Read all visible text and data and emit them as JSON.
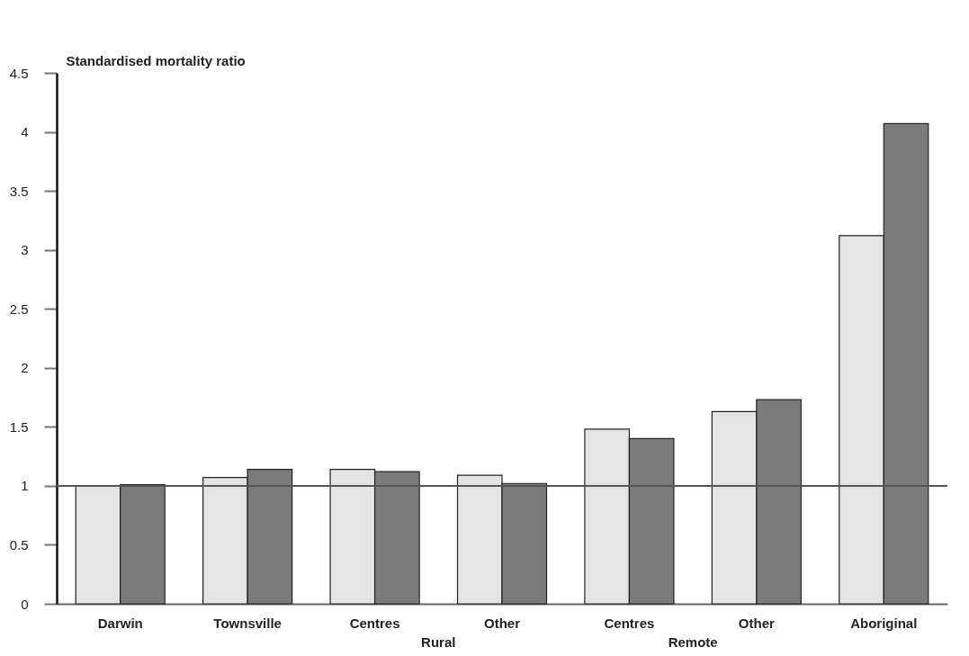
{
  "chart_data": {
    "type": "bar",
    "ylabel": "Standardised mortality ratio",
    "categories": [
      "Darwin",
      "Townsville",
      "Centres",
      "Other",
      "Centres",
      "Other",
      "Aboriginal"
    ],
    "series": [
      {
        "color": "#e4e4e4",
        "values": [
          1.0,
          1.07,
          1.14,
          1.09,
          1.48,
          1.63,
          3.12
        ]
      },
      {
        "color": "#7b7b7b",
        "values": [
          1.01,
          1.14,
          1.12,
          1.02,
          1.4,
          1.73,
          4.07
        ]
      }
    ],
    "ylim": [
      0,
      4.5
    ],
    "yticks": [
      0,
      0.5,
      1,
      1.5,
      2,
      2.5,
      3,
      3.5,
      4,
      4.5
    ],
    "grid": false,
    "legend": false,
    "ref_lines": [
      {
        "axis": "y",
        "value": 1,
        "color": "#555555"
      }
    ],
    "annotations": [
      {
        "text": "Rural"
      },
      {
        "text": "Remote"
      }
    ]
  }
}
